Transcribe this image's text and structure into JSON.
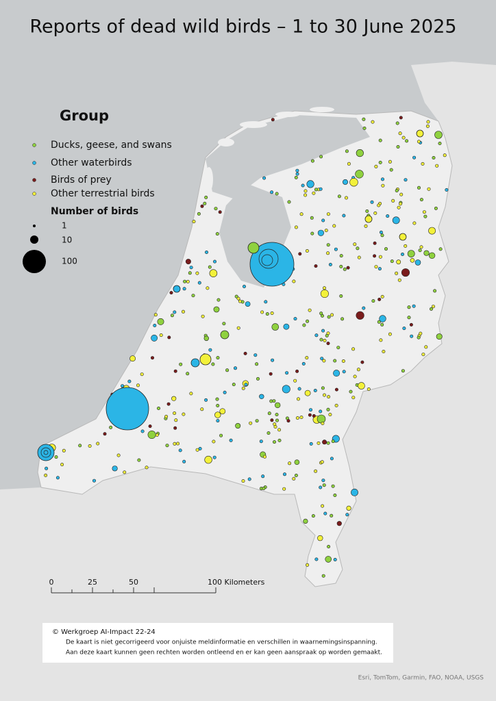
{
  "title": "Reports of dead wild birds – 1 to 30 June 2025",
  "legend": {
    "title": "Group",
    "groups": [
      {
        "name": "Ducks, geese, and swans",
        "color": "#8fd13f"
      },
      {
        "name": "Other waterbirds",
        "color": "#2bb5e6"
      },
      {
        "name": "Birds of prey",
        "color": "#7a1c1c"
      },
      {
        "name": "Other terrestrial birds",
        "color": "#f3f13a"
      }
    ],
    "size_title": "Number of birds",
    "sizes": [
      "1",
      "10",
      "100"
    ]
  },
  "scale_bar": {
    "labels": [
      "0",
      "25",
      "50",
      "100 Kilometers"
    ]
  },
  "credits": {
    "title": "©  Werkgroep AI-Impact 22-24",
    "lines": [
      "De kaart is niet gecorrigeerd voor onjuiste meldinformatie en verschillen in waarnemingsinspanning.",
      "Aan deze kaart kunnen geen rechten worden ontleend en er kan geen aanspraak op worden gemaakt."
    ]
  },
  "attribution": "Esri, TomTom, Garmin, FAO, NOAA, USGS"
}
